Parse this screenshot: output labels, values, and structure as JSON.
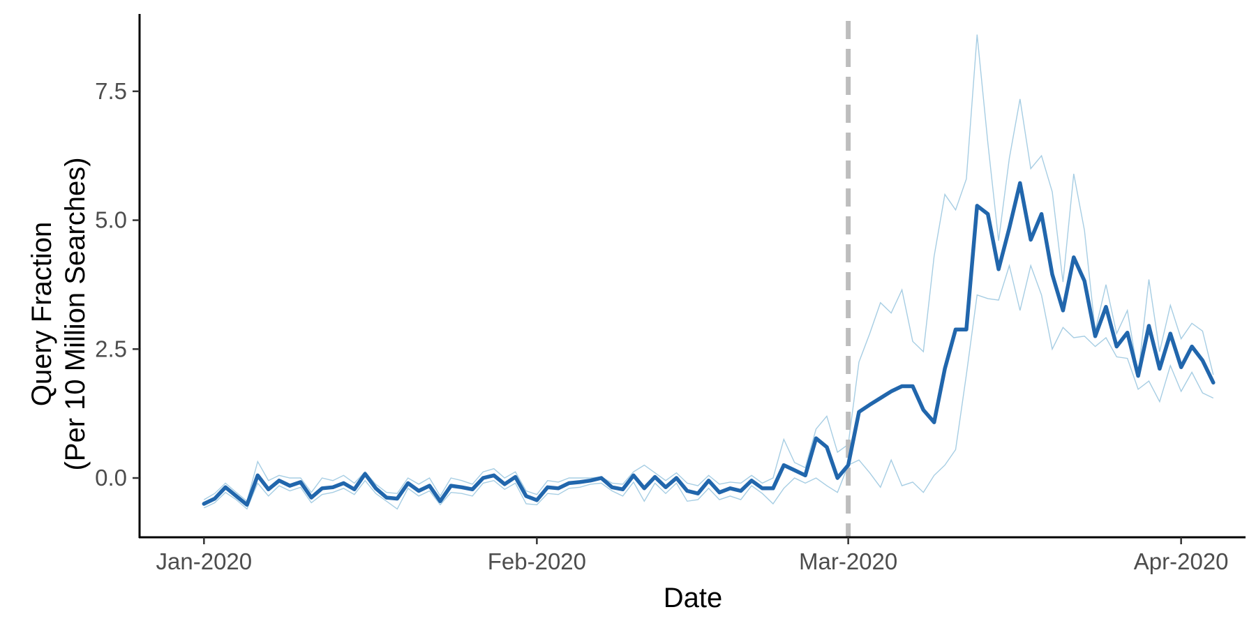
{
  "chart_data": {
    "type": "line",
    "title": "",
    "xlabel": "Date",
    "ylabel": "Query Fraction\n(Per 10 Million Searches)",
    "ylabel_lines": [
      "Query Fraction",
      "(Per 10 Million Searches)"
    ],
    "x_start": "2020-01-01",
    "x_ticks": [
      {
        "date": "2020-01-01",
        "label": "Jan-2020"
      },
      {
        "date": "2020-02-01",
        "label": "Feb-2020"
      },
      {
        "date": "2020-03-01",
        "label": "Mar-2020"
      },
      {
        "date": "2020-04-01",
        "label": "Apr-2020"
      }
    ],
    "xlim": [
      "2019-12-26",
      "2020-04-07"
    ],
    "y_ticks": [
      {
        "value": 0.0,
        "label": "0.0"
      },
      {
        "value": 2.5,
        "label": "2.5"
      },
      {
        "value": 5.0,
        "label": "5.0"
      },
      {
        "value": 7.5,
        "label": "7.5"
      }
    ],
    "ylim": [
      -1.15,
      9.0
    ],
    "reference_line": {
      "date": "2020-03-01",
      "style": "dashed",
      "color": "#bdbdbd"
    },
    "grid": false,
    "colors": {
      "main": "#2166ac",
      "band": "#a6cde3",
      "reference": "#bdbdbd",
      "axis": "#000000"
    },
    "series": [
      {
        "role": "estimate",
        "values": [
          -0.5,
          -0.4,
          -0.18,
          -0.35,
          -0.52,
          0.05,
          -0.22,
          -0.05,
          -0.15,
          -0.08,
          -0.38,
          -0.2,
          -0.18,
          -0.1,
          -0.22,
          0.08,
          -0.2,
          -0.38,
          -0.4,
          -0.1,
          -0.25,
          -0.15,
          -0.45,
          -0.15,
          -0.18,
          -0.22,
          0.0,
          0.05,
          -0.12,
          0.02,
          -0.35,
          -0.43,
          -0.18,
          -0.2,
          -0.1,
          -0.08,
          -0.05,
          0.0,
          -0.18,
          -0.22,
          0.05,
          -0.2,
          0.02,
          -0.18,
          0.0,
          -0.25,
          -0.3,
          -0.05,
          -0.28,
          -0.2,
          -0.25,
          -0.05,
          -0.2,
          -0.2,
          0.25,
          0.15,
          0.05,
          0.77,
          0.6,
          0.0,
          0.25,
          1.28,
          1.42,
          1.55,
          1.68,
          1.78,
          1.78,
          1.32,
          1.08,
          2.12,
          2.88,
          2.88,
          5.28,
          5.12,
          4.05,
          4.85,
          5.72,
          4.62,
          5.12,
          3.95,
          3.25,
          4.28,
          3.82,
          2.75,
          3.32,
          2.55,
          2.82,
          1.98,
          2.95,
          2.12,
          2.8,
          2.15,
          2.55,
          2.28,
          1.85
        ]
      },
      {
        "role": "upper",
        "values": [
          -0.42,
          -0.3,
          -0.1,
          -0.28,
          -0.45,
          0.32,
          -0.05,
          0.05,
          0.0,
          0.0,
          -0.28,
          0.0,
          -0.05,
          0.05,
          -0.1,
          0.12,
          -0.12,
          -0.28,
          -0.3,
          0.0,
          -0.12,
          0.0,
          -0.35,
          0.0,
          -0.05,
          -0.12,
          0.12,
          0.18,
          0.0,
          0.12,
          -0.25,
          -0.32,
          -0.05,
          -0.08,
          0.0,
          0.0,
          0.0,
          0.02,
          -0.1,
          -0.12,
          0.12,
          0.25,
          0.1,
          -0.05,
          0.1,
          -0.1,
          -0.15,
          0.05,
          -0.12,
          -0.08,
          -0.1,
          0.05,
          -0.1,
          0.0,
          0.75,
          0.3,
          0.2,
          0.95,
          1.2,
          0.5,
          0.65,
          2.25,
          2.8,
          3.4,
          3.2,
          3.65,
          2.65,
          2.45,
          4.3,
          5.5,
          5.2,
          5.8,
          8.6,
          6.5,
          4.6,
          6.2,
          7.35,
          6.0,
          6.25,
          5.55,
          3.8,
          5.9,
          4.8,
          2.85,
          3.75,
          2.8,
          3.25,
          2.0,
          3.85,
          2.45,
          3.35,
          2.7,
          3.0,
          2.85,
          2.0
        ]
      },
      {
        "role": "lower",
        "values": [
          -0.58,
          -0.48,
          -0.28,
          -0.42,
          -0.6,
          -0.1,
          -0.35,
          -0.15,
          -0.25,
          -0.18,
          -0.48,
          -0.32,
          -0.28,
          -0.2,
          -0.32,
          -0.05,
          -0.3,
          -0.45,
          -0.6,
          -0.2,
          -0.35,
          -0.25,
          -0.52,
          -0.28,
          -0.3,
          -0.35,
          -0.1,
          -0.05,
          -0.22,
          -0.1,
          -0.5,
          -0.52,
          -0.3,
          -0.32,
          -0.2,
          -0.18,
          -0.12,
          -0.1,
          -0.25,
          -0.35,
          -0.08,
          -0.45,
          -0.1,
          -0.3,
          -0.1,
          -0.45,
          -0.42,
          -0.2,
          -0.42,
          -0.35,
          -0.42,
          -0.15,
          -0.3,
          -0.5,
          -0.2,
          0.0,
          -0.1,
          0.0,
          -0.15,
          -0.28,
          0.25,
          0.35,
          0.1,
          -0.18,
          0.35,
          -0.15,
          -0.08,
          -0.28,
          0.05,
          0.25,
          0.55,
          2.0,
          3.55,
          3.48,
          3.45,
          4.12,
          3.25,
          4.12,
          3.55,
          2.5,
          2.92,
          2.72,
          2.75,
          2.55,
          2.72,
          2.35,
          2.32,
          1.72,
          1.88,
          1.48,
          2.18,
          1.68,
          2.05,
          1.65,
          1.55
        ]
      }
    ]
  }
}
